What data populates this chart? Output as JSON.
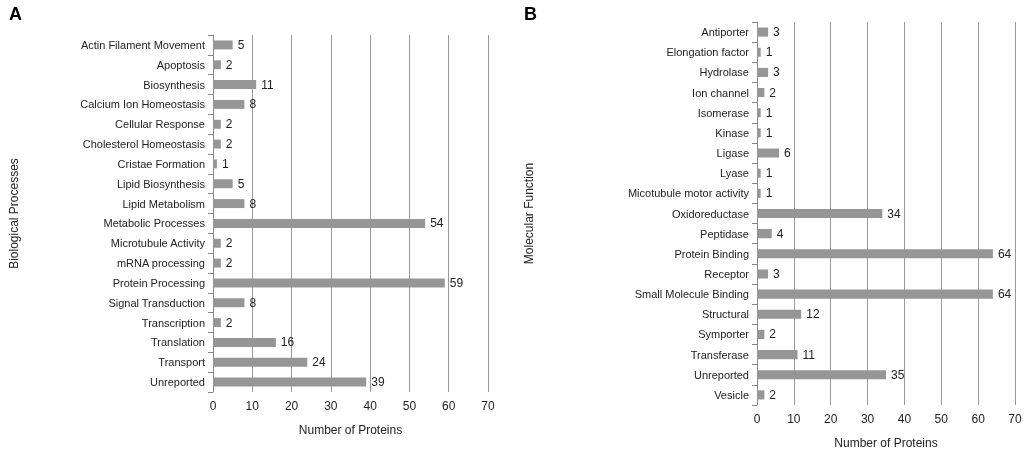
{
  "chart_data": [
    {
      "type": "bar",
      "orientation": "horizontal",
      "title": "A",
      "xlabel": "Number of Proteins",
      "ylabel": "Biological Processes",
      "categories": [
        "Actin Filament Movement",
        "Apoptosis",
        "Biosynthesis",
        "Calcium Ion Homeostasis",
        "Cellular Response",
        "Cholesterol Homeostasis",
        "Cristae Formation",
        "Lipid Biosynthesis",
        "Lipid Metabolism",
        "Metabolic Processes",
        "Microtubule Activity",
        "mRNA processing",
        "Protein Processing",
        "Signal Transduction",
        "Transcription",
        "Translation",
        "Transport",
        "Unreported"
      ],
      "values": [
        5,
        2,
        11,
        8,
        2,
        2,
        1,
        5,
        8,
        54,
        2,
        2,
        59,
        8,
        2,
        16,
        24,
        39
      ],
      "color": "#969696",
      "xlim": [
        0,
        70
      ],
      "xticks": [
        0,
        10,
        20,
        30,
        40,
        50,
        60,
        70
      ],
      "grid": "x",
      "data_labels": true
    },
    {
      "type": "bar",
      "orientation": "horizontal",
      "title": "B",
      "xlabel": "Number of Proteins",
      "ylabel": "Molecular Function",
      "categories": [
        "Antiporter",
        "Elongation factor",
        "Hydrolase",
        "Ion channel",
        "Isomerase",
        "Kinase",
        "Ligase",
        "Lyase",
        "Micotubule motor activity",
        "Oxidoreductase",
        "Peptidase",
        "Protein Binding",
        "Receptor",
        "Small Molecule Binding",
        "Structural",
        "Symporter",
        "Transferase",
        "Unreported",
        "Vesicle"
      ],
      "values": [
        3,
        1,
        3,
        2,
        1,
        1,
        6,
        1,
        1,
        34,
        4,
        64,
        3,
        64,
        12,
        2,
        11,
        35,
        2
      ],
      "color": "#969696",
      "xlim": [
        0,
        70
      ],
      "xticks": [
        0,
        10,
        20,
        30,
        40,
        50,
        60,
        70
      ],
      "grid": "x",
      "data_labels": true
    }
  ]
}
